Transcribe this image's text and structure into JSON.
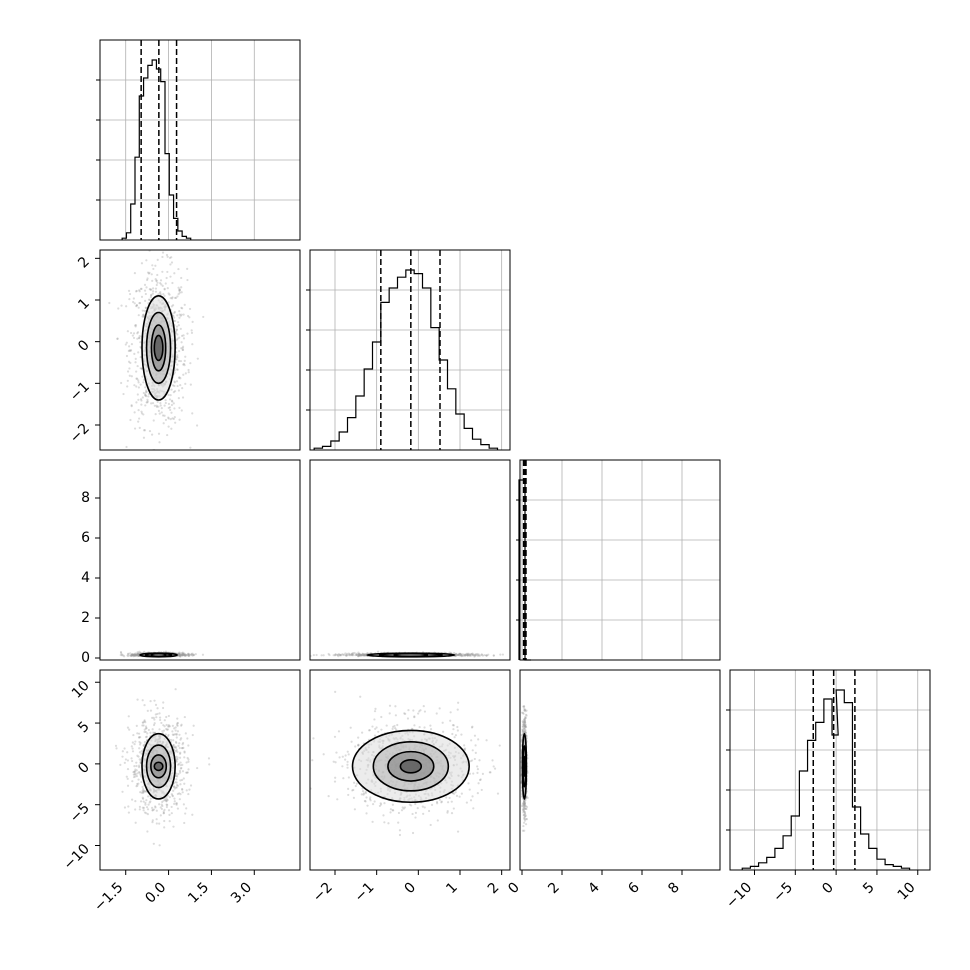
{
  "chart_data": {
    "type": "corner",
    "parameters": [
      {
        "index": 0,
        "ticks": [
          -1.5,
          0.0,
          1.5,
          3.0
        ],
        "tick_labels": [
          "−1.5",
          "0.0",
          "1.5",
          "3.0"
        ],
        "range": [
          -2.4,
          4.6
        ],
        "quantiles": [
          -0.96,
          -0.34,
          0.28
        ],
        "hist": [
          [
            -1.55,
            0.01
          ],
          [
            -1.4,
            0.04
          ],
          [
            -1.25,
            0.2
          ],
          [
            -1.1,
            0.46
          ],
          [
            -0.95,
            0.8
          ],
          [
            -0.8,
            0.9
          ],
          [
            -0.65,
            0.97
          ],
          [
            -0.5,
            1.0
          ],
          [
            -0.35,
            0.95
          ],
          [
            -0.2,
            0.88
          ],
          [
            -0.05,
            0.48
          ],
          [
            0.1,
            0.25
          ],
          [
            0.25,
            0.12
          ],
          [
            0.4,
            0.05
          ],
          [
            0.55,
            0.02
          ],
          [
            0.7,
            0.01
          ]
        ]
      },
      {
        "index": 1,
        "ticks": [
          -2,
          -1,
          0,
          1,
          2
        ],
        "tick_labels": [
          "−2",
          "−1",
          "0",
          "1",
          "2"
        ],
        "range": [
          -2.6,
          2.2
        ],
        "quantiles": [
          -0.9,
          -0.18,
          0.52
        ],
        "hist": [
          [
            -2.4,
            0.01
          ],
          [
            -2.2,
            0.02
          ],
          [
            -2.0,
            0.05
          ],
          [
            -1.8,
            0.1
          ],
          [
            -1.6,
            0.18
          ],
          [
            -1.4,
            0.3
          ],
          [
            -1.2,
            0.45
          ],
          [
            -1.0,
            0.6
          ],
          [
            -0.8,
            0.82
          ],
          [
            -0.6,
            0.9
          ],
          [
            -0.4,
            0.96
          ],
          [
            -0.2,
            1.0
          ],
          [
            0.0,
            0.98
          ],
          [
            0.2,
            0.9
          ],
          [
            0.4,
            0.68
          ],
          [
            0.6,
            0.5
          ],
          [
            0.8,
            0.34
          ],
          [
            1.0,
            0.2
          ],
          [
            1.2,
            0.12
          ],
          [
            1.4,
            0.06
          ],
          [
            1.6,
            0.03
          ],
          [
            1.8,
            0.01
          ]
        ]
      },
      {
        "index": 2,
        "ticks": [
          0,
          2,
          4,
          6,
          8
        ],
        "tick_labels": [
          "0",
          "2",
          "4",
          "6",
          "8"
        ],
        "range": [
          -0.1,
          9.9
        ],
        "quantiles": [
          0.08,
          0.14,
          0.2
        ],
        "hist": [
          [
            0.0,
            1.0
          ],
          [
            0.3,
            0.0
          ]
        ]
      },
      {
        "index": 3,
        "ticks": [
          -10,
          -5,
          0,
          5,
          10
        ],
        "tick_labels": [
          "−10",
          "−5",
          "0",
          "5",
          "10"
        ],
        "range": [
          -13.0,
          11.5
        ],
        "quantiles": [
          -2.8,
          -0.3,
          2.3
        ],
        "hist": [
          [
            -11.0,
            0.01
          ],
          [
            -10.0,
            0.02
          ],
          [
            -9.0,
            0.04
          ],
          [
            -8.0,
            0.07
          ],
          [
            -7.0,
            0.12
          ],
          [
            -6.0,
            0.19
          ],
          [
            -5.0,
            0.3
          ],
          [
            -4.0,
            0.55
          ],
          [
            -3.0,
            0.72
          ],
          [
            -2.0,
            0.82
          ],
          [
            -1.0,
            0.95
          ],
          [
            0.0,
            0.75
          ],
          [
            0.5,
            1.0
          ],
          [
            1.5,
            0.93
          ],
          [
            2.5,
            0.35
          ],
          [
            3.5,
            0.2
          ],
          [
            4.5,
            0.12
          ],
          [
            5.5,
            0.06
          ],
          [
            6.5,
            0.03
          ],
          [
            7.5,
            0.02
          ],
          [
            8.5,
            0.01
          ]
        ]
      }
    ],
    "pairs": [
      {
        "x": 0,
        "y": 1,
        "center": [
          -0.35,
          -0.15
        ],
        "sigma": [
          0.45,
          0.85
        ],
        "contours": [
          [
            0.15,
            0.3
          ],
          [
            0.25,
            0.55
          ],
          [
            0.42,
            0.85
          ],
          [
            0.58,
            1.25
          ]
        ]
      },
      {
        "x": 0,
        "y": 2,
        "center": [
          -0.35,
          0.15
        ],
        "sigma": [
          0.45,
          0.05
        ],
        "contours": [
          [
            0.25,
            0.03
          ],
          [
            0.45,
            0.06
          ],
          [
            0.65,
            0.09
          ]
        ]
      },
      {
        "x": 1,
        "y": 2,
        "center": [
          -0.18,
          0.15
        ],
        "sigma": [
          0.7,
          0.05
        ],
        "contours": [
          [
            0.4,
            0.03
          ],
          [
            0.75,
            0.06
          ],
          [
            1.05,
            0.09
          ]
        ]
      },
      {
        "x": 0,
        "y": 3,
        "center": [
          -0.35,
          -0.3
        ],
        "sigma": [
          0.45,
          2.6
        ],
        "contours": [
          [
            0.15,
            0.5
          ],
          [
            0.27,
            1.4
          ],
          [
            0.42,
            2.6
          ],
          [
            0.58,
            4.0
          ]
        ]
      },
      {
        "x": 1,
        "y": 3,
        "center": [
          -0.18,
          -0.3
        ],
        "sigma": [
          0.7,
          2.6
        ],
        "contours": [
          [
            0.25,
            0.8
          ],
          [
            0.55,
            1.8
          ],
          [
            0.9,
            3.0
          ],
          [
            1.4,
            4.4
          ]
        ]
      },
      {
        "x": 2,
        "y": 3,
        "center": [
          0.12,
          -0.3
        ],
        "sigma": [
          0.05,
          2.6
        ],
        "contours": [
          [
            0.04,
            1.2
          ],
          [
            0.07,
            2.5
          ],
          [
            0.1,
            4.0
          ]
        ]
      }
    ]
  }
}
